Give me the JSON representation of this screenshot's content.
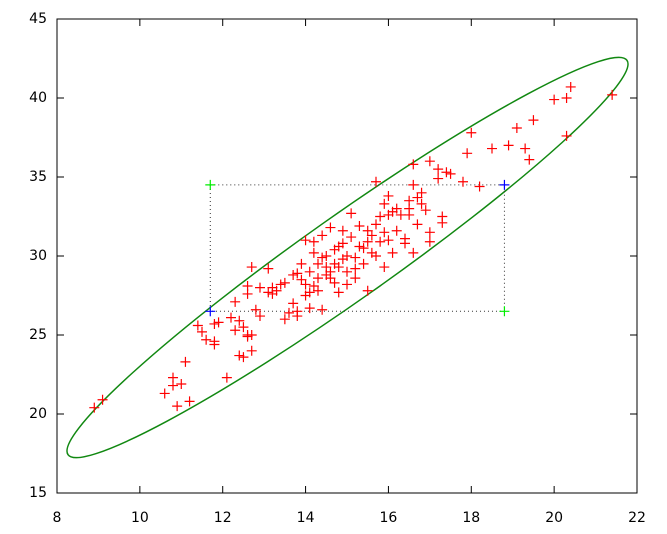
{
  "chart_data": {
    "type": "scatter",
    "xlim": [
      8,
      22
    ],
    "xticks": [
      8,
      10,
      12,
      14,
      16,
      18,
      20,
      22
    ],
    "ylim": [
      15,
      45
    ],
    "yticks": [
      15,
      20,
      25,
      30,
      35,
      40,
      45
    ],
    "series": [
      {
        "color": "#ff0000",
        "x": [
          8.9,
          9.1,
          10.6,
          10.8,
          10.8,
          10.9,
          11.0,
          11.1,
          11.2,
          11.4,
          11.5,
          11.6,
          11.8,
          11.8,
          11.8,
          11.9,
          12.1,
          12.2,
          12.3,
          12.3,
          12.4,
          12.4,
          12.5,
          12.5,
          12.6,
          12.6,
          12.6,
          12.6,
          12.7,
          12.7,
          12.7,
          12.8,
          12.9,
          12.9,
          13.1,
          13.1,
          13.2,
          13.2,
          13.3,
          13.4,
          13.5,
          13.5,
          13.6,
          13.7,
          13.7,
          13.8,
          13.8,
          13.8,
          13.9,
          13.9,
          14.0,
          14.0,
          14.0,
          14.1,
          14.1,
          14.1,
          14.2,
          14.2,
          14.2,
          14.3,
          14.3,
          14.3,
          14.4,
          14.4,
          14.4,
          14.5,
          14.5,
          14.5,
          14.6,
          14.6,
          14.6,
          14.7,
          14.7,
          14.7,
          14.8,
          14.8,
          14.8,
          14.9,
          14.9,
          14.9,
          15.0,
          15.0,
          15.0,
          15.1,
          15.1,
          15.2,
          15.2,
          15.2,
          15.3,
          15.3,
          15.4,
          15.4,
          15.5,
          15.5,
          15.5,
          15.6,
          15.6,
          15.7,
          15.7,
          15.7,
          15.8,
          15.8,
          15.9,
          15.9,
          15.9,
          16.0,
          16.0,
          16.0,
          16.1,
          16.1,
          16.2,
          16.2,
          16.3,
          16.4,
          16.4,
          16.5,
          16.5,
          16.5,
          16.6,
          16.6,
          16.6,
          16.7,
          16.7,
          16.8,
          16.8,
          16.9,
          17.0,
          17.0,
          17.0,
          17.2,
          17.2,
          17.3,
          17.3,
          17.4,
          17.5,
          17.8,
          17.9,
          18.0,
          18.2,
          18.5,
          18.9,
          19.1,
          19.3,
          19.4,
          19.5,
          20.0,
          20.3,
          20.3,
          20.4,
          21.4
        ],
        "values": [
          20.4,
          20.9,
          21.3,
          22.3,
          21.8,
          20.5,
          21.9,
          23.3,
          20.8,
          25.6,
          25.2,
          24.7,
          24.4,
          24.6,
          25.7,
          25.8,
          22.3,
          26.1,
          27.1,
          25.3,
          23.7,
          25.9,
          23.6,
          25.5,
          25.0,
          24.9,
          27.6,
          28.1,
          24.0,
          25.0,
          29.3,
          26.6,
          26.2,
          28.0,
          29.2,
          27.7,
          28.0,
          27.6,
          27.8,
          28.2,
          26.0,
          28.3,
          26.4,
          27.0,
          28.8,
          26.2,
          26.5,
          28.9,
          28.5,
          29.5,
          27.5,
          31.0,
          28.2,
          29.0,
          27.7,
          26.7,
          28.1,
          30.2,
          30.9,
          29.5,
          28.6,
          27.8,
          29.9,
          31.3,
          26.6,
          29.3,
          28.8,
          30.0,
          28.6,
          29.0,
          31.8,
          29.5,
          28.3,
          30.4,
          29.3,
          30.6,
          27.7,
          29.8,
          30.8,
          31.6,
          29.0,
          30.0,
          28.2,
          31.2,
          32.7,
          29.2,
          29.9,
          28.6,
          30.6,
          31.9,
          29.5,
          30.5,
          30.9,
          31.6,
          27.8,
          30.2,
          31.3,
          30.0,
          32.0,
          34.7,
          30.9,
          32.5,
          29.3,
          31.5,
          33.3,
          31.0,
          32.6,
          33.8,
          32.8,
          30.2,
          33.0,
          31.6,
          32.6,
          31.1,
          30.8,
          33.0,
          33.5,
          32.6,
          34.5,
          35.8,
          30.2,
          33.7,
          32.0,
          34.0,
          33.3,
          32.9,
          31.5,
          36.0,
          30.9,
          35.5,
          34.9,
          32.5,
          32.1,
          35.3,
          35.2,
          34.7,
          36.5,
          37.8,
          34.4,
          36.8,
          37.0,
          38.1,
          36.8,
          36.1,
          38.6,
          39.9,
          40.0,
          37.6,
          40.7,
          40.2
        ]
      },
      {
        "color": "#0000ff",
        "x": [
          11.7,
          18.8
        ],
        "values": [
          26.5,
          34.5
        ]
      },
      {
        "color": "#00ee00",
        "x": [
          11.7,
          18.8
        ],
        "values": [
          34.5,
          26.5
        ]
      }
    ]
  }
}
